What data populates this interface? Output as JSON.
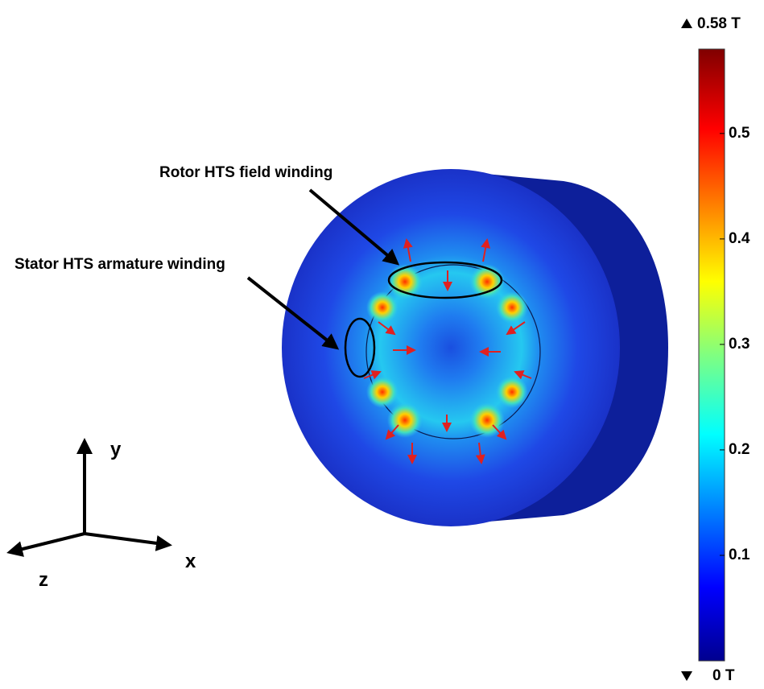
{
  "annotations": {
    "rotor": "Rotor HTS field winding",
    "stator": "Stator HTS armature winding"
  },
  "axes": {
    "x": "x",
    "y": "y",
    "z": "z"
  },
  "colorbar": {
    "lim": [
      0,
      0.58
    ],
    "max": {
      "value": 0.58,
      "label": "0.58 T"
    },
    "min": {
      "value": 0,
      "label": "0 T"
    },
    "ticks": [
      0.1,
      0.2,
      0.3,
      0.4,
      0.5
    ]
  }
}
